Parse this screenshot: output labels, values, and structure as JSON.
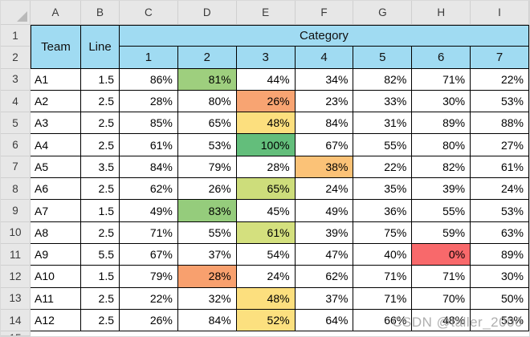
{
  "watermark": "CSDN @taller_2000",
  "chrome": {
    "column_headers": [
      "A",
      "B",
      "C",
      "D",
      "E",
      "F",
      "G",
      "H",
      "I"
    ],
    "row_numbers": [
      "1",
      "2",
      "3",
      "4",
      "5",
      "6",
      "7",
      "8",
      "9",
      "10",
      "11",
      "12",
      "13",
      "14"
    ],
    "partial_row_number": "15"
  },
  "table": {
    "team_label": "Team",
    "line_label": "Line",
    "category_label": "Category",
    "category_columns": [
      "1",
      "2",
      "3",
      "4",
      "5",
      "6",
      "7"
    ],
    "rows": [
      {
        "team": "A1",
        "line": "1.5",
        "values": [
          "86%",
          "81%",
          "44%",
          "34%",
          "82%",
          "71%",
          "22%"
        ],
        "highlight_index": 1,
        "highlight_color": "#9ECF7E"
      },
      {
        "team": "A2",
        "line": "2.5",
        "values": [
          "28%",
          "80%",
          "26%",
          "23%",
          "33%",
          "30%",
          "53%"
        ],
        "highlight_index": 2,
        "highlight_color": "#F8A472"
      },
      {
        "team": "A3",
        "line": "2.5",
        "values": [
          "85%",
          "65%",
          "48%",
          "84%",
          "31%",
          "89%",
          "88%"
        ],
        "highlight_index": 2,
        "highlight_color": "#FCDF7E"
      },
      {
        "team": "A4",
        "line": "2.5",
        "values": [
          "61%",
          "53%",
          "100%",
          "67%",
          "55%",
          "80%",
          "27%"
        ],
        "highlight_index": 2,
        "highlight_color": "#63BE7B"
      },
      {
        "team": "A5",
        "line": "3.5",
        "values": [
          "84%",
          "79%",
          "28%",
          "38%",
          "22%",
          "82%",
          "61%"
        ],
        "highlight_index": 3,
        "highlight_color": "#FBC277"
      },
      {
        "team": "A6",
        "line": "2.5",
        "values": [
          "62%",
          "26%",
          "65%",
          "24%",
          "35%",
          "39%",
          "24%"
        ],
        "highlight_index": 2,
        "highlight_color": "#CDDD7B"
      },
      {
        "team": "A7",
        "line": "1.5",
        "values": [
          "49%",
          "83%",
          "45%",
          "49%",
          "36%",
          "55%",
          "53%"
        ],
        "highlight_index": 1,
        "highlight_color": "#95CC7C"
      },
      {
        "team": "A8",
        "line": "2.5",
        "values": [
          "71%",
          "55%",
          "61%",
          "39%",
          "75%",
          "59%",
          "63%"
        ],
        "highlight_index": 2,
        "highlight_color": "#D4E07E"
      },
      {
        "team": "A9",
        "line": "5.5",
        "values": [
          "67%",
          "37%",
          "54%",
          "47%",
          "40%",
          "0%",
          "89%"
        ],
        "highlight_index": 5,
        "highlight_color": "#F8696B"
      },
      {
        "team": "A10",
        "line": "1.5",
        "values": [
          "79%",
          "28%",
          "24%",
          "62%",
          "71%",
          "71%",
          "30%"
        ],
        "highlight_index": 1,
        "highlight_color": "#F8A06E"
      },
      {
        "team": "A11",
        "line": "2.5",
        "values": [
          "22%",
          "32%",
          "48%",
          "37%",
          "71%",
          "70%",
          "50%"
        ],
        "highlight_index": 2,
        "highlight_color": "#FCDF7E"
      },
      {
        "team": "A12",
        "line": "2.5",
        "values": [
          "26%",
          "84%",
          "52%",
          "64%",
          "66%",
          "48%",
          "53%"
        ],
        "highlight_index": 2,
        "highlight_color": "#FCE07F"
      }
    ],
    "colors": {
      "header_fill": "#A0DBF2",
      "chrome_fill": "#E7E7E7",
      "grid_border": "#000000",
      "scale_min_color": "#F8696B",
      "scale_mid_color": "#FFEB84",
      "scale_max_color": "#63BE7B"
    }
  }
}
